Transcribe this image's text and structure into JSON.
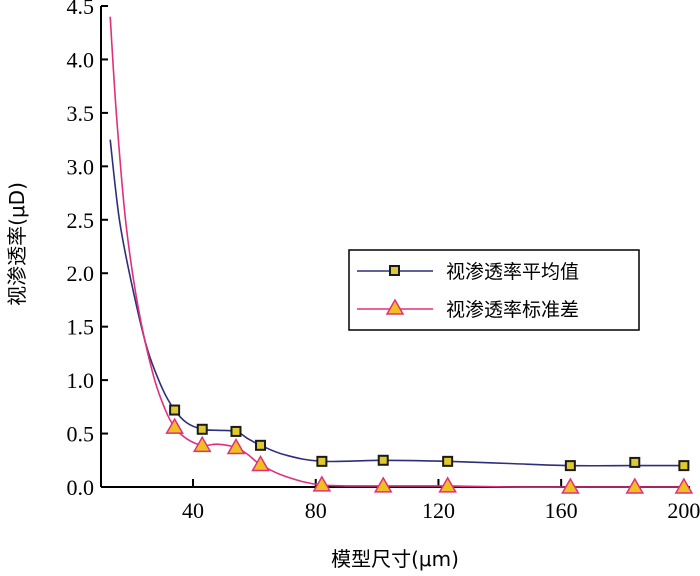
{
  "chart_data": {
    "type": "line",
    "xlabel": "模型尺寸(μm)",
    "ylabel": "视渗透率(μD)",
    "xlim": [
      10,
      202
    ],
    "ylim": [
      0,
      4.5
    ],
    "xticks": [
      40,
      80,
      120,
      160,
      200
    ],
    "yticks": [
      0.0,
      0.5,
      1.0,
      1.5,
      2.0,
      2.5,
      3.0,
      3.5,
      4.0,
      4.5
    ],
    "xtick_labels": [
      "40",
      "80",
      "120",
      "160",
      "200"
    ],
    "ytick_labels": [
      "0.0",
      "0.5",
      "1.0",
      "1.5",
      "2.0",
      "2.5",
      "3.0",
      "3.5",
      "4.0",
      "4.5"
    ],
    "legend_position": "center-right",
    "series": [
      {
        "name": "视渗透率平均值",
        "color": "#2e2e7a",
        "marker": "square",
        "marker_fill": "#e0c830",
        "curve": [
          [
            13,
            3.25
          ],
          [
            16,
            2.5
          ],
          [
            20,
            1.9
          ],
          [
            25,
            1.3
          ],
          [
            30,
            0.92
          ],
          [
            34,
            0.72
          ],
          [
            38,
            0.6
          ],
          [
            43,
            0.54
          ],
          [
            48,
            0.53
          ],
          [
            54,
            0.52
          ],
          [
            58,
            0.45
          ],
          [
            62,
            0.39
          ],
          [
            70,
            0.3
          ],
          [
            82,
            0.24
          ],
          [
            102,
            0.25
          ],
          [
            123,
            0.24
          ],
          [
            143,
            0.22
          ],
          [
            163,
            0.2
          ],
          [
            183,
            0.2
          ],
          [
            200,
            0.2
          ]
        ],
        "markers": [
          [
            34,
            0.72
          ],
          [
            43,
            0.54
          ],
          [
            54,
            0.52
          ],
          [
            62,
            0.39
          ],
          [
            82,
            0.24
          ],
          [
            102,
            0.25
          ],
          [
            123,
            0.24
          ],
          [
            163,
            0.2
          ],
          [
            184,
            0.23
          ],
          [
            200,
            0.2
          ]
        ]
      },
      {
        "name": "视渗透率标准差",
        "color": "#e0307a",
        "marker": "triangle",
        "marker_fill": "#f0c020",
        "curve": [
          [
            13,
            4.4
          ],
          [
            15,
            3.5
          ],
          [
            18,
            2.5
          ],
          [
            22,
            1.7
          ],
          [
            27,
            1.05
          ],
          [
            31,
            0.72
          ],
          [
            34,
            0.56
          ],
          [
            38,
            0.45
          ],
          [
            43,
            0.39
          ],
          [
            48,
            0.4
          ],
          [
            54,
            0.37
          ],
          [
            58,
            0.3
          ],
          [
            62,
            0.21
          ],
          [
            70,
            0.1
          ],
          [
            82,
            0.02
          ],
          [
            102,
            0.01
          ],
          [
            123,
            0.01
          ],
          [
            143,
            0.0
          ],
          [
            163,
            0.0
          ],
          [
            183,
            0.0
          ],
          [
            200,
            0.0
          ]
        ],
        "markers": [
          [
            34,
            0.56
          ],
          [
            43,
            0.39
          ],
          [
            54,
            0.37
          ],
          [
            62,
            0.21
          ],
          [
            82,
            0.02
          ],
          [
            102,
            0.01
          ],
          [
            123,
            0.01
          ],
          [
            163,
            0.0
          ],
          [
            184,
            0.0
          ],
          [
            200,
            0.0
          ]
        ]
      }
    ]
  }
}
